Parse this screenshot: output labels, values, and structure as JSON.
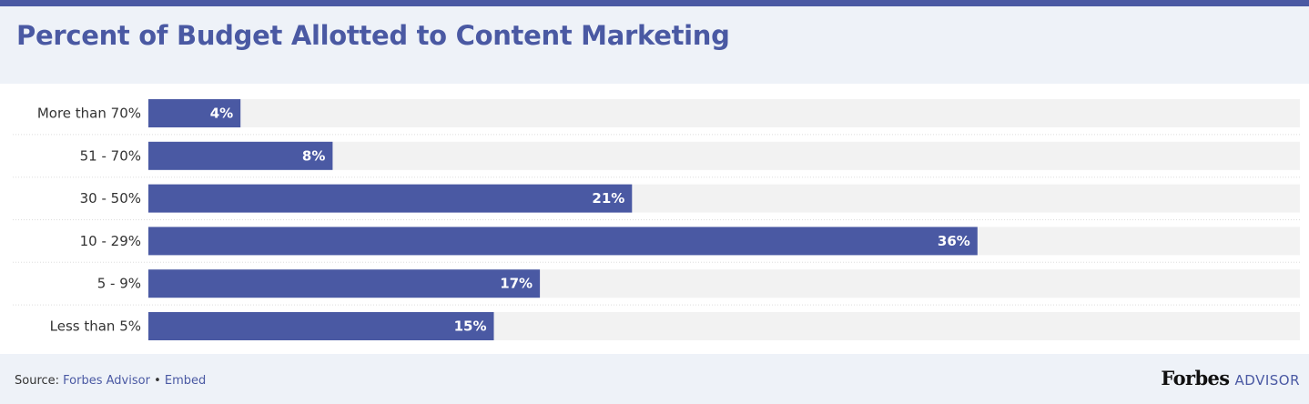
{
  "colors": {
    "accent": "#4a59a3",
    "track": "#f2f2f2",
    "header_bg": "#eef2f8"
  },
  "footer": {
    "source_label": "Source:",
    "source_link": "Forbes Advisor",
    "separator": "•",
    "embed_link": "Embed",
    "brand_name": "Forbes",
    "brand_suffix": "ADVISOR"
  },
  "chart_data": {
    "type": "bar",
    "orientation": "horizontal",
    "title": "Percent of Budget Allotted to Content Marketing",
    "xlabel": "",
    "ylabel": "",
    "xlim": [
      0,
      50
    ],
    "grid": false,
    "legend": "none",
    "categories": [
      "More than 70%",
      "51 - 70%",
      "30 - 50%",
      "10 - 29%",
      "5 - 9%",
      "Less than 5%"
    ],
    "values": [
      4,
      8,
      21,
      36,
      17,
      15
    ],
    "value_labels": [
      "4%",
      "8%",
      "21%",
      "36%",
      "17%",
      "15%"
    ]
  }
}
